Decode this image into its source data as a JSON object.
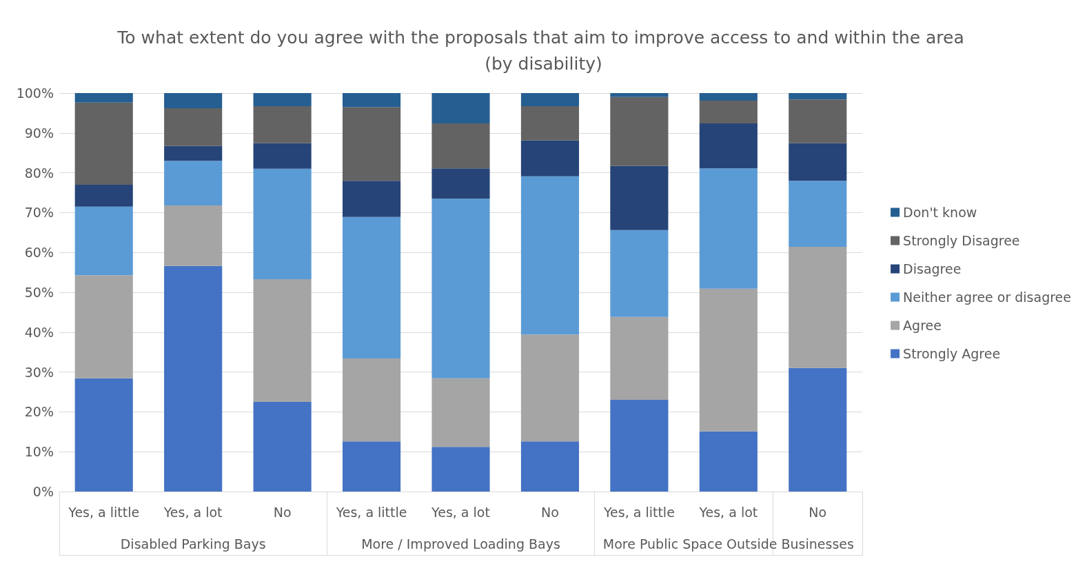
{
  "chart_data": {
    "type": "bar",
    "stacked": true,
    "title": "To what extent do you agree with the proposals that aim to improve access to and within the area (by disability)",
    "categories": [
      "Yes, a little",
      "Yes, a lot",
      "No",
      "Yes, a little",
      "Yes, a lot",
      "No",
      "Yes, a little",
      "Yes, a lot",
      "No"
    ],
    "annotations": [
      "Disabled Parking Bays",
      "More / Improved Loading Bays",
      "More Public Space Outside Businesses"
    ],
    "series": [
      {
        "name": "Strongly Agree",
        "color": "#4472c4",
        "values": [
          28.4,
          56.6,
          22.5,
          12.6,
          11.2,
          12.6,
          23.0,
          15.1,
          31.0
        ]
      },
      {
        "name": "Agree",
        "color": "#a5a5a5",
        "values": [
          25.9,
          15.2,
          30.8,
          20.8,
          17.2,
          26.8,
          20.8,
          35.8,
          30.4
        ]
      },
      {
        "name": "Neither agree or disagree",
        "color": "#5b9bd5",
        "values": [
          17.2,
          11.2,
          27.7,
          35.5,
          45.1,
          39.7,
          21.8,
          30.2,
          16.6
        ]
      },
      {
        "name": "Disagree",
        "color": "#264478",
        "values": [
          5.5,
          3.7,
          6.4,
          9.1,
          7.6,
          9.0,
          16.1,
          11.3,
          9.4
        ]
      },
      {
        "name": "Strongly Disagree",
        "color": "#636363",
        "values": [
          20.6,
          9.5,
          9.3,
          18.5,
          11.3,
          8.6,
          17.3,
          5.7,
          11.0
        ]
      },
      {
        "name": "Don't know",
        "color": "#255e91",
        "values": [
          2.4,
          3.8,
          3.3,
          3.5,
          7.6,
          3.3,
          1.0,
          1.9,
          1.6
        ]
      }
    ],
    "ylim": [
      0,
      100
    ],
    "yticks": [
      {
        "value": 0,
        "label": "0%"
      },
      {
        "value": 10,
        "label": "10%"
      },
      {
        "value": 20,
        "label": "20%"
      },
      {
        "value": 30,
        "label": "30%"
      },
      {
        "value": 40,
        "label": "40%"
      },
      {
        "value": 50,
        "label": "50%"
      },
      {
        "value": 60,
        "label": "60%"
      },
      {
        "value": 70,
        "label": "70%"
      },
      {
        "value": 80,
        "label": "80%"
      },
      {
        "value": 90,
        "label": "90%"
      },
      {
        "value": 100,
        "label": "100%"
      }
    ],
    "grid": "y",
    "legend": "right"
  }
}
